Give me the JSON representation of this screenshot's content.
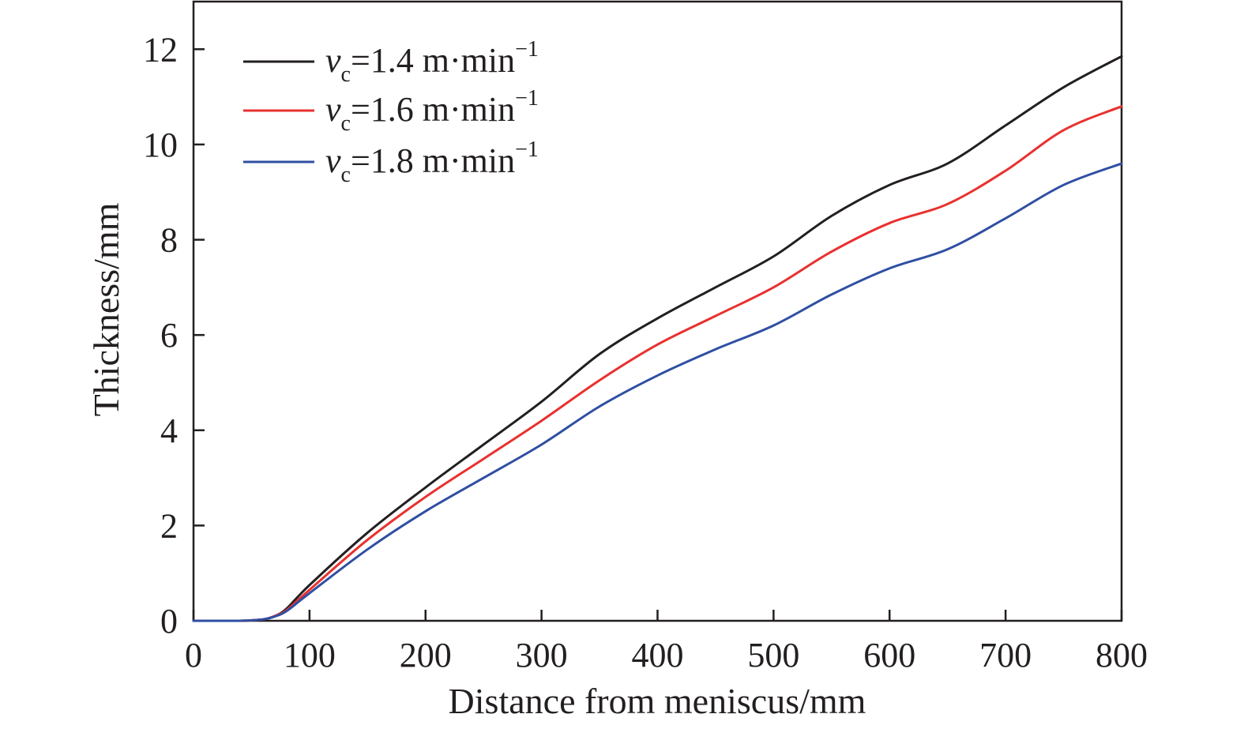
{
  "chart_data": {
    "type": "line",
    "title": "",
    "xlabel": "Distance from meniscus/mm",
    "ylabel": "Thickness/mm",
    "xlim": [
      0,
      800
    ],
    "ylim": [
      0,
      13
    ],
    "xticks": [
      0,
      100,
      200,
      300,
      400,
      500,
      600,
      700,
      800
    ],
    "yticks": [
      0,
      2,
      4,
      6,
      8,
      10,
      12
    ],
    "grid": false,
    "legend_position": "top-left",
    "x": [
      0,
      20,
      40,
      60,
      70,
      80,
      100,
      150,
      200,
      250,
      300,
      350,
      400,
      450,
      500,
      550,
      600,
      650,
      700,
      750,
      800
    ],
    "series": [
      {
        "legend": {
          "var": "v",
          "sub": "c",
          "value": "=1.4 m·min",
          "sup": "−1"
        },
        "color": "#231f20",
        "values": [
          0,
          0,
          0,
          0.03,
          0.1,
          0.25,
          0.75,
          1.85,
          2.8,
          3.7,
          4.6,
          5.6,
          6.35,
          7.0,
          7.65,
          8.5,
          9.15,
          9.6,
          10.4,
          11.2,
          11.85
        ]
      },
      {
        "legend": {
          "var": "v",
          "sub": "c",
          "value": "=1.6 m·min",
          "sup": "−1"
        },
        "color": "#e8312f",
        "values": [
          0,
          0,
          0,
          0.03,
          0.1,
          0.22,
          0.65,
          1.7,
          2.6,
          3.4,
          4.2,
          5.05,
          5.8,
          6.4,
          7.0,
          7.75,
          8.35,
          8.75,
          9.45,
          10.3,
          10.8
        ]
      },
      {
        "legend": {
          "var": "v",
          "sub": "c",
          "value": "=1.8 m·min",
          "sup": "−1"
        },
        "color": "#2f4fa2",
        "values": [
          0,
          0,
          0,
          0.03,
          0.09,
          0.2,
          0.58,
          1.5,
          2.3,
          3.0,
          3.7,
          4.5,
          5.15,
          5.7,
          6.2,
          6.85,
          7.4,
          7.8,
          8.45,
          9.15,
          9.6
        ]
      }
    ]
  }
}
